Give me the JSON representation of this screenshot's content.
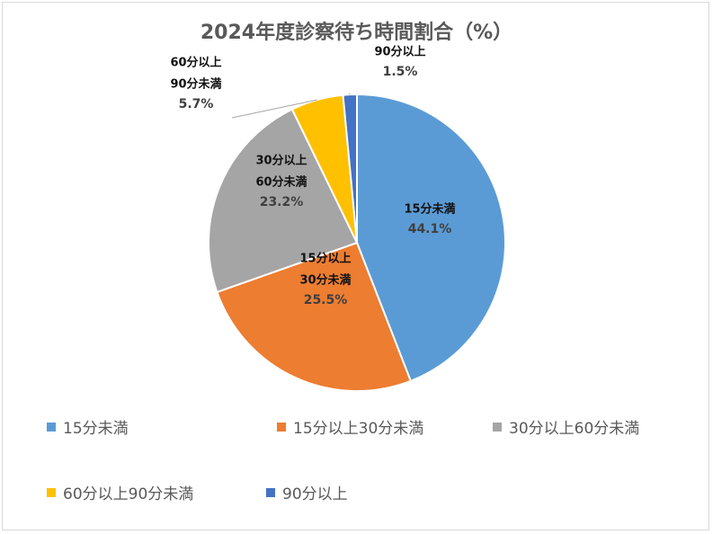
{
  "chart_data": {
    "type": "pie",
    "title": "2024年度診察待ち時間割合（%）",
    "slices": [
      {
        "label": "15分未満",
        "label_lines": [
          "15分未満"
        ],
        "value": 44.1,
        "value_text": "44.1%",
        "color": "#5b9bd5"
      },
      {
        "label": "15分以上30分未満",
        "label_lines": [
          "15分以上",
          "30分未満"
        ],
        "value": 25.5,
        "value_text": "25.5%",
        "color": "#ed7d31"
      },
      {
        "label": "30分以上60分未満",
        "label_lines": [
          "30分以上",
          "60分未満"
        ],
        "value": 23.2,
        "value_text": "23.2%",
        "color": "#a5a5a5"
      },
      {
        "label": "60分以上90分未満",
        "label_lines": [
          "60分以上",
          "90分未満"
        ],
        "value": 5.7,
        "value_text": "5.7%",
        "color": "#ffc000"
      },
      {
        "label": "90分以上",
        "label_lines": [
          "90分以上"
        ],
        "value": 1.5,
        "value_text": "1.5%",
        "color": "#4472c4"
      }
    ],
    "legend_position": "bottom"
  }
}
